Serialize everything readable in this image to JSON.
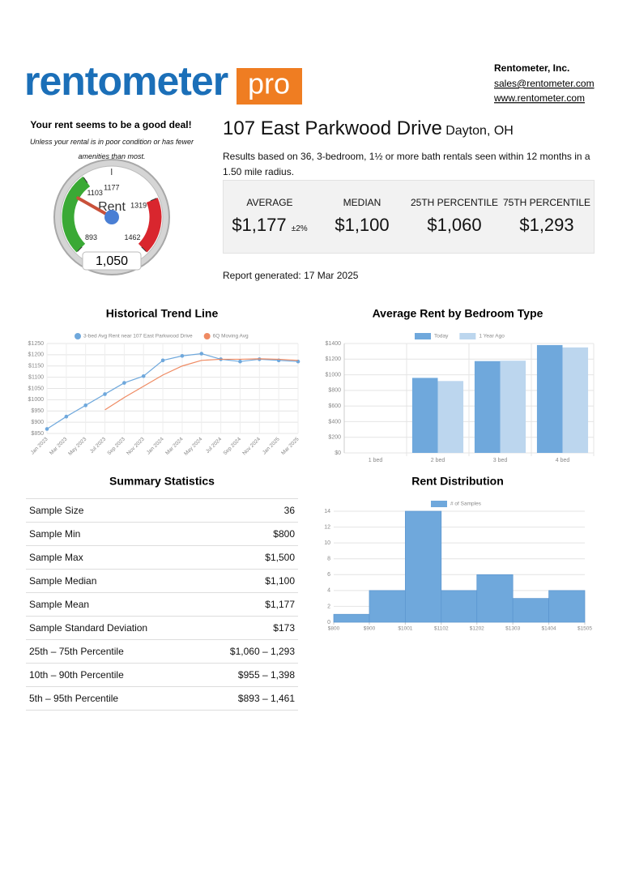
{
  "header": {
    "logo": "rentometer",
    "logo_badge": "pro",
    "company": "Rentometer, Inc.",
    "email": "sales@rentometer.com",
    "website": "www.rentometer.com"
  },
  "verdict": {
    "title": "Your rent seems to be a good deal!",
    "note": "Unless your rental is in poor condition or has fewer amenities than most."
  },
  "property": {
    "address": "107 East Parkwood Drive",
    "city": "Dayton, OH",
    "description": "Results based on 36, 3-bedroom, 1½ or more bath rentals seen within 12 months in a 1.50 mile radius."
  },
  "stats": [
    {
      "label": "AVERAGE",
      "value": "$1,177",
      "note": "±2%"
    },
    {
      "label": "MEDIAN",
      "value": "$1,100"
    },
    {
      "label": "25TH PERCENTILE",
      "value": "$1,060"
    },
    {
      "label": "75TH PERCENTILE",
      "value": "$1,293"
    }
  ],
  "report_generated": "Report generated: 17 Mar 2025",
  "summary_statistics": {
    "title": "Summary Statistics",
    "rows": [
      [
        "Sample Size",
        "36"
      ],
      [
        "Sample Min",
        "$800"
      ],
      [
        "Sample Max",
        "$1,500"
      ],
      [
        "Sample Median",
        "$1,100"
      ],
      [
        "Sample Mean",
        "$1,177"
      ],
      [
        "Sample Standard Deviation",
        "$173"
      ],
      [
        "25th – 75th Percentile",
        "$1,060 – 1,293"
      ],
      [
        "10th – 90th Percentile",
        "$955 – 1,398"
      ],
      [
        "5th – 95th Percentile",
        "$893 – 1,461"
      ]
    ]
  },
  "chart_data": [
    {
      "type": "gauge",
      "label": "Rent",
      "value": 1050,
      "value_label": "1,050",
      "ylim": [
        893,
        1462
      ],
      "yticks": [
        893,
        1103,
        1177,
        1319,
        1462
      ],
      "bands": [
        {
          "from": 893,
          "to": 1103,
          "color": "#3aa935"
        },
        {
          "from": 1319,
          "to": 1462,
          "color": "#d9262e"
        }
      ],
      "needle_color": "#c9513a",
      "hub_color": "#4a7fd4"
    },
    {
      "type": "line",
      "title": "Historical Trend Line",
      "categories": [
        "Jan 2023",
        "Mar 2023",
        "May 2023",
        "Jul 2023",
        "Sep 2023",
        "Nov 2023",
        "Jan 2024",
        "Mar 2024",
        "May 2024",
        "Jul 2024",
        "Sep 2024",
        "Nov 2024",
        "Jan 2025",
        "Mar 2025"
      ],
      "series": [
        {
          "name": "3-bed Avg Rent near 107 East Parkwood Drive",
          "color": "#6fa8dc",
          "markers": true,
          "values": [
            870,
            925,
            975,
            1025,
            1075,
            1105,
            1175,
            1195,
            1205,
            1180,
            1170,
            1180,
            1175,
            1170
          ]
        },
        {
          "name": "6Q Moving Avg",
          "color": "#ef8a62",
          "markers": false,
          "values": [
            null,
            null,
            null,
            955,
            1010,
            1060,
            1110,
            1150,
            1175,
            1180,
            1180,
            1182,
            1180,
            1175
          ]
        }
      ],
      "ylim": [
        850,
        1250
      ],
      "yticks": [
        {
          "value": 850,
          "label": "$850"
        },
        {
          "value": 900,
          "label": "$900"
        },
        {
          "value": 950,
          "label": "$950"
        },
        {
          "value": 1000,
          "label": "$1000"
        },
        {
          "value": 1050,
          "label": "$1050"
        },
        {
          "value": 1100,
          "label": "$1100"
        },
        {
          "value": 1150,
          "label": "$1150"
        },
        {
          "value": 1200,
          "label": "$1200"
        },
        {
          "value": 1250,
          "label": "$1250"
        }
      ],
      "grid": true
    },
    {
      "type": "bar",
      "title": "Average Rent by Bedroom Type",
      "categories": [
        "1 bed",
        "2 bed",
        "3 bed",
        "4 bed"
      ],
      "series": [
        {
          "name": "Today",
          "color": "#6fa8dc",
          "values": [
            null,
            960,
            1175,
            1380
          ]
        },
        {
          "name": "1 Year Ago",
          "color": "#bcd6ee",
          "values": [
            null,
            920,
            1180,
            1350
          ]
        }
      ],
      "ylim": [
        0,
        1400
      ],
      "yticks": [
        {
          "value": 0,
          "label": "$0"
        },
        {
          "value": 200,
          "label": "$200"
        },
        {
          "value": 400,
          "label": "$400"
        },
        {
          "value": 600,
          "label": "$600"
        },
        {
          "value": 800,
          "label": "$800"
        },
        {
          "value": 1000,
          "label": "$1000"
        },
        {
          "value": 1200,
          "label": "$1200"
        },
        {
          "value": 1400,
          "label": "$1400"
        }
      ],
      "grid": true
    },
    {
      "type": "histogram",
      "title": "Rent Distribution",
      "bins": [
        800,
        900,
        1001,
        1102,
        1202,
        1303,
        1404,
        1505
      ],
      "series": [
        {
          "name": "# of Samples",
          "color": "#6fa8dc",
          "values": [
            1,
            4,
            14,
            4,
            6,
            3,
            4
          ]
        }
      ],
      "xlim": [
        800,
        1505
      ],
      "xticks": [
        {
          "value": 800,
          "label": "$800"
        },
        {
          "value": 900,
          "label": "$900"
        },
        {
          "value": 1001,
          "label": "$1001"
        },
        {
          "value": 1102,
          "label": "$1102"
        },
        {
          "value": 1202,
          "label": "$1202"
        },
        {
          "value": 1303,
          "label": "$1303"
        },
        {
          "value": 1404,
          "label": "$1404"
        },
        {
          "value": 1505,
          "label": "$1505"
        }
      ],
      "ylim": [
        0,
        14
      ],
      "yticks": [
        0,
        2,
        4,
        6,
        8,
        10,
        12,
        14
      ],
      "grid": true
    }
  ]
}
